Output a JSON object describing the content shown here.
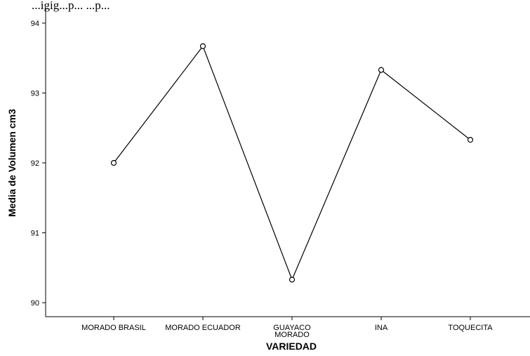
{
  "partial_title": "...igig...p... ...p...",
  "chart_data": {
    "type": "line",
    "title": "",
    "xlabel": "VARIEDAD",
    "ylabel": "Media de Volumen cm3",
    "categories": [
      "MORADO BRASIL",
      "MORADO ECUADOR",
      "GUAYACO MORADO",
      "INA",
      "TOQUECITA"
    ],
    "category_labels": [
      [
        "MORADO BRASIL"
      ],
      [
        "MORADO ECUADOR"
      ],
      [
        "GUAYACO",
        "MORADO"
      ],
      [
        "INA"
      ],
      [
        "TOQUECITA"
      ]
    ],
    "values": [
      92.0,
      93.67,
      90.33,
      93.33,
      92.33
    ],
    "y_ticks": [
      90,
      91,
      92,
      93,
      94
    ],
    "ylim": [
      89.8,
      94.2
    ],
    "grid": false,
    "marker": "open-circle",
    "line_color": "#000000"
  }
}
